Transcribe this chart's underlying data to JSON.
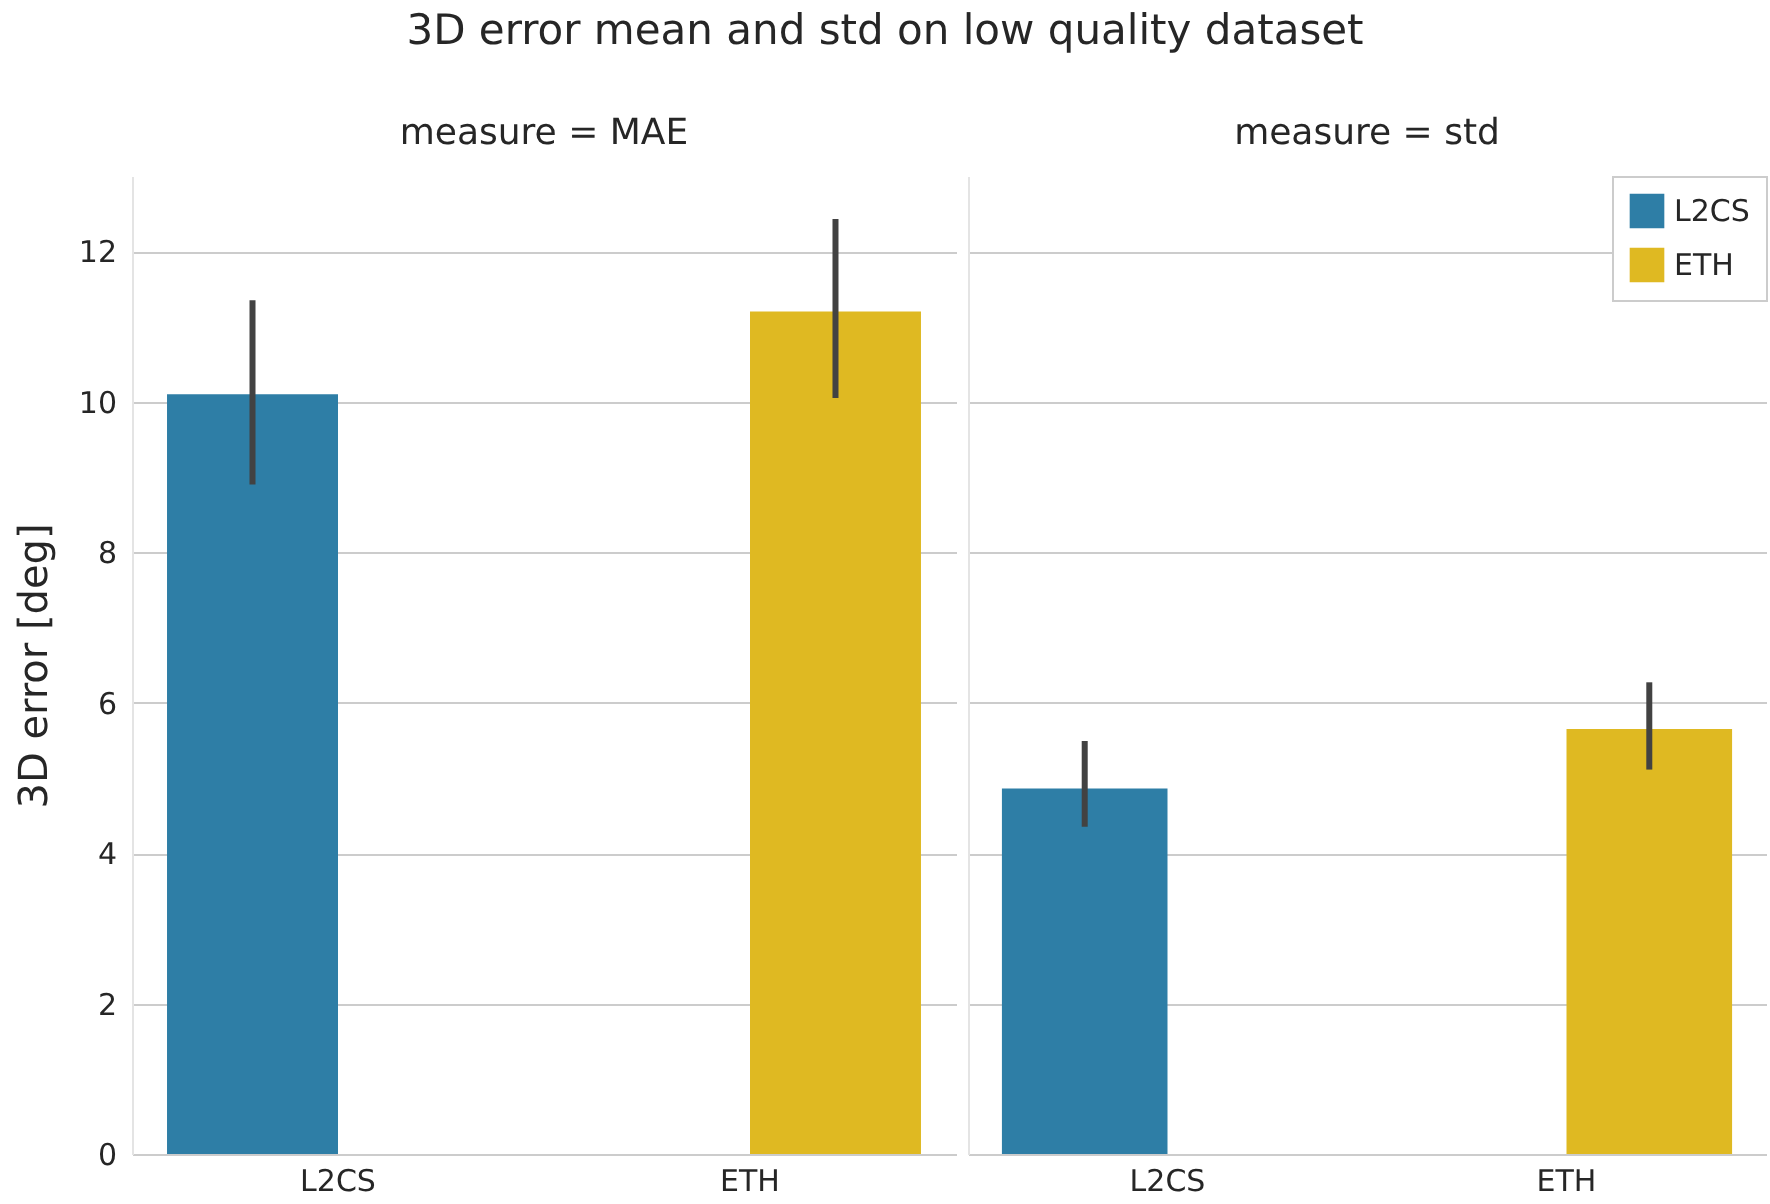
{
  "chart_data": [
    {
      "type": "bar",
      "title": "3D error mean and std on low quality dataset",
      "subtitle": "measure = MAE",
      "ylabel": "3D error [deg]",
      "categories": [
        "L2CS",
        "ETH"
      ],
      "ylim": [
        0,
        13
      ],
      "yticks": [
        0,
        2,
        4,
        6,
        8,
        10,
        12
      ],
      "grid": "y",
      "legend": false,
      "series": [
        {
          "color": "#2e7ea6",
          "values": [
            10.1,
            null
          ],
          "errors": [
            [
              8.9,
              11.35
            ],
            null
          ]
        },
        {
          "color": "#dfb922",
          "values": [
            null,
            11.2
          ],
          "errors": [
            null,
            [
              10.05,
              12.43
            ]
          ]
        }
      ]
    },
    {
      "type": "bar",
      "subtitle": "measure = std",
      "categories": [
        "L2CS",
        "ETH"
      ],
      "ylim": [
        0,
        13
      ],
      "yticks": [
        0,
        2,
        4,
        6,
        8,
        10,
        12
      ],
      "grid": "y",
      "legend": "top right",
      "tick_labels": "x",
      "series": [
        {
          "name": "L2CS",
          "color": "#2e7ea6",
          "values": [
            4.86,
            null
          ],
          "errors": [
            [
              4.35,
              5.49
            ],
            null
          ]
        },
        {
          "name": "ETH",
          "color": "#dfb922",
          "values": [
            null,
            5.65
          ],
          "errors": [
            null,
            [
              5.11,
              6.27
            ]
          ]
        }
      ]
    }
  ]
}
